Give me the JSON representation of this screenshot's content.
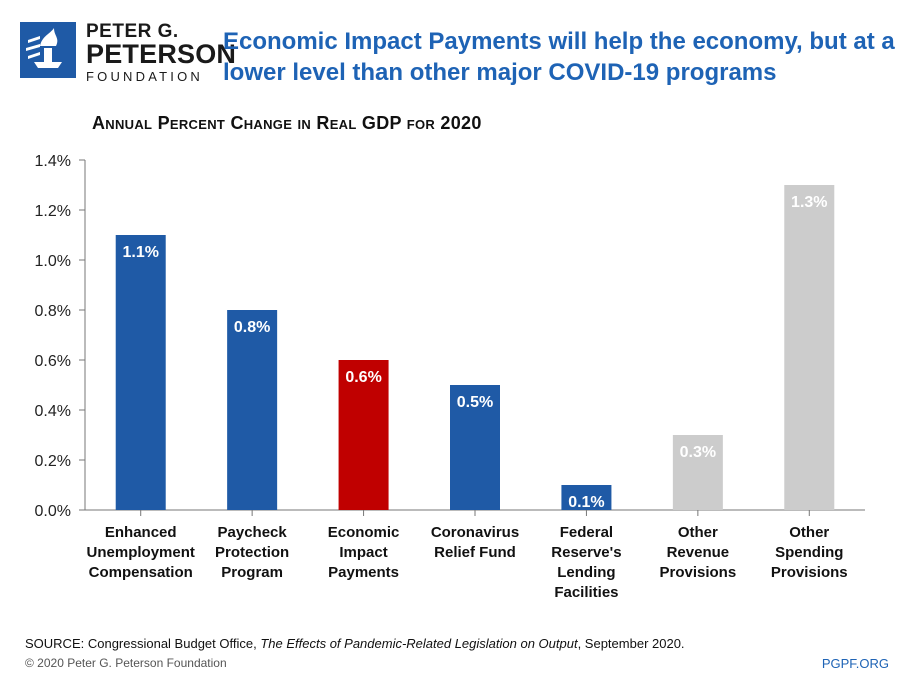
{
  "logo": {
    "line1": "PETER G.",
    "line2": "PETERSON",
    "line3": "FOUNDATION",
    "icon": "torch-icon"
  },
  "header": {
    "title": "Economic Impact Payments will help the economy, but at a lower level than other major COVID-19 programs"
  },
  "chart_data": {
    "type": "bar",
    "title": "Annual Percent Change in Real GDP for 2020",
    "xlabel": "",
    "ylabel": "",
    "ylim": [
      0,
      1.4
    ],
    "yticks": [
      "0.0%",
      "0.2%",
      "0.4%",
      "0.6%",
      "0.8%",
      "1.0%",
      "1.2%",
      "1.4%"
    ],
    "grid": false,
    "categories": [
      [
        "Enhanced",
        "Unemployment",
        "Compensation"
      ],
      [
        "Paycheck",
        "Protection",
        "Program"
      ],
      [
        "Economic",
        "Impact",
        "Payments"
      ],
      [
        "Coronavirus",
        "Relief Fund"
      ],
      [
        "Federal",
        "Reserve's",
        "Lending",
        "Facilities"
      ],
      [
        "Other",
        "Revenue",
        "Provisions"
      ],
      [
        "Other",
        "Spending",
        "Provisions"
      ]
    ],
    "values": [
      1.1,
      0.8,
      0.6,
      0.5,
      0.1,
      0.3,
      1.3
    ],
    "data_labels": [
      "1.1%",
      "0.8%",
      "0.6%",
      "0.5%",
      "0.1%",
      "0.3%",
      "1.3%"
    ],
    "colors": [
      "#1f5aa6",
      "#1f5aa6",
      "#c00000",
      "#1f5aa6",
      "#1f5aa6",
      "#cccccc",
      "#cccccc"
    ]
  },
  "footer": {
    "source_prefix": "SOURCE: Congressional Budget Office, ",
    "source_title": "The Effects of Pandemic-Related Legislation on Output",
    "source_suffix": ", September 2020.",
    "copyright": "© 2020 Peter G. Peterson Foundation",
    "site": "PGPF.ORG"
  }
}
